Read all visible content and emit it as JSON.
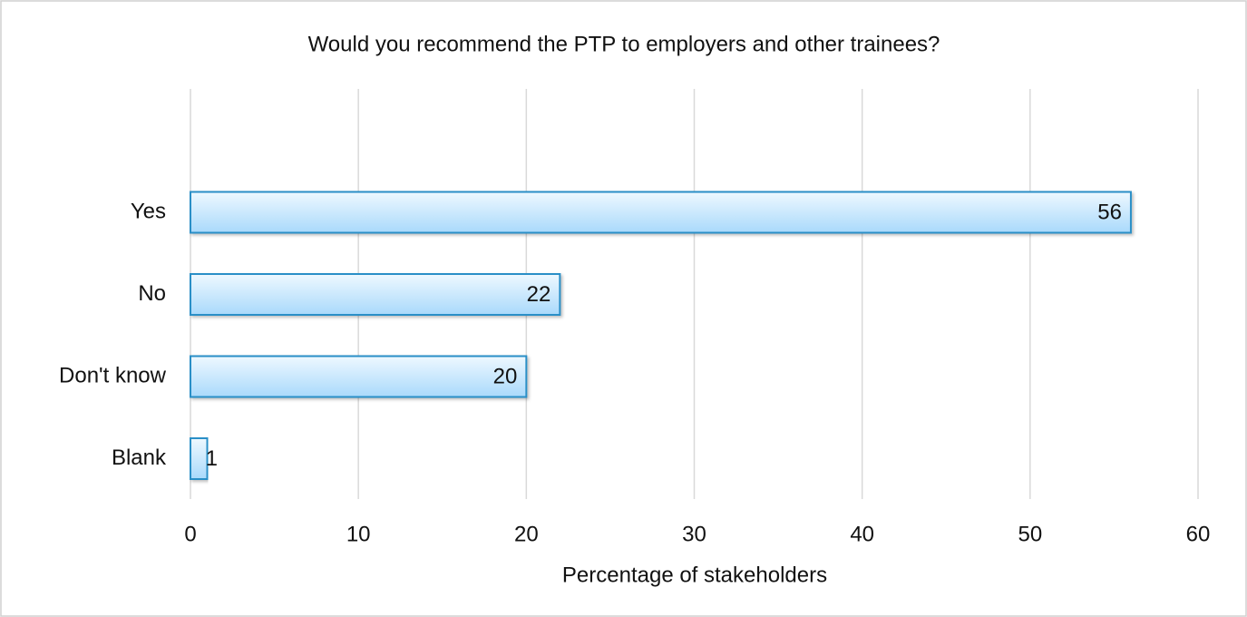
{
  "chart_data": {
    "type": "bar",
    "orientation": "horizontal",
    "title": "Would you recommend the PTP to employers and other trainees?",
    "x_label": "Percentage of stakeholders",
    "categories": [
      "Yes",
      "No",
      "Don't know",
      "Blank"
    ],
    "values": [
      56,
      22,
      20,
      1
    ],
    "color": "#2a8fc7",
    "xlim": [
      0,
      60
    ],
    "xticks": [
      0,
      10,
      20,
      30,
      40,
      50,
      60
    ],
    "grid": true
  }
}
